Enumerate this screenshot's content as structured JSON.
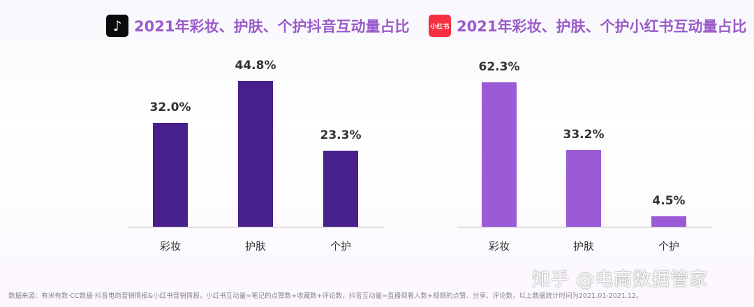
{
  "chart_data": [
    {
      "type": "bar",
      "title": "2021年彩妆、护肤、个护抖音互动量占比",
      "logo": "抖音 (tiktok-logo)",
      "categories": [
        "彩妆",
        "护肤",
        "个护"
      ],
      "values": [
        32.0,
        44.8,
        23.3
      ],
      "value_labels": [
        "32.0%",
        "44.8%",
        "23.3%"
      ],
      "unit": "%",
      "color": "#47208c",
      "title_color": "#9a5bc9",
      "ylim": [
        0,
        48
      ],
      "grid": false
    },
    {
      "type": "bar",
      "title": "2021年彩妆、护肤、个护小红书互动量占比",
      "logo": "小红书",
      "categories": [
        "彩妆",
        "护肤",
        "个护"
      ],
      "values": [
        62.3,
        33.2,
        4.5
      ],
      "value_labels": [
        "62.3%",
        "33.2%",
        "4.5%"
      ],
      "unit": "%",
      "color": "#9b5ad6",
      "title_color": "#9a5bc9",
      "ylim": [
        0,
        65
      ],
      "grid": false
    }
  ],
  "footer": "数据来源：有米有数·CC数据·抖音电商营销情报&小红书营销情报，小红书互动量=笔记的点赞数+收藏数+评论数，抖音互动量=直播观看人数+视频的点赞、分享、评论数，以上数据统计时间为2021.01-2021.12。",
  "watermark": "知乎 @电商数据管家"
}
